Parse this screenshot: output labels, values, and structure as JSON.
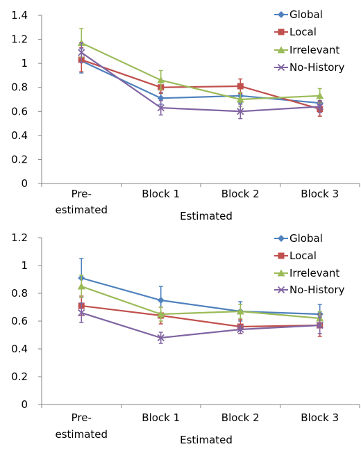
{
  "chart_data": [
    {
      "type": "line",
      "categories": [
        "Pre-estimated",
        "Block 1",
        "Block 2",
        "Block 3"
      ],
      "category_lines": [
        [
          "Pre-",
          "estimated"
        ],
        [
          "Block 1"
        ],
        [
          "Block 2"
        ],
        [
          "Block 3"
        ]
      ],
      "xlabel": "Estimated",
      "ylabel": "",
      "ylim": [
        0,
        1.4
      ],
      "yticks": [
        0,
        0.2,
        0.4,
        0.6,
        0.8,
        1,
        1.2,
        1.4
      ],
      "ytick_labels": [
        "0",
        "0.2",
        "0.4",
        "0.6",
        "0.8",
        "1",
        "1.2",
        "1.4"
      ],
      "grid": false,
      "legend_position": "top-right",
      "series": [
        {
          "name": "Global",
          "color": "#4f81bd",
          "marker": "diamond",
          "values": [
            1.02,
            0.71,
            0.73,
            0.67
          ],
          "errors": [
            0.1,
            0.05,
            0.06,
            0.04
          ]
        },
        {
          "name": "Local",
          "color": "#c0504d",
          "marker": "square",
          "values": [
            1.03,
            0.8,
            0.81,
            0.62
          ],
          "errors": [
            0.1,
            0.05,
            0.06,
            0.06
          ]
        },
        {
          "name": "Irrelevant",
          "color": "#9bbb59",
          "marker": "triangle",
          "values": [
            1.17,
            0.86,
            0.7,
            0.73
          ],
          "errors": [
            0.12,
            0.08,
            0.06,
            0.06
          ]
        },
        {
          "name": "No-History",
          "color": "#8064a2",
          "marker": "x",
          "values": [
            1.09,
            0.63,
            0.6,
            0.64
          ],
          "errors": [
            0.08,
            0.06,
            0.06,
            0.05
          ]
        }
      ]
    },
    {
      "type": "line",
      "categories": [
        "Pre-estimated",
        "Block 1",
        "Block 2",
        "Block 3"
      ],
      "category_lines": [
        [
          "Pre-",
          "estimated"
        ],
        [
          "Block 1"
        ],
        [
          "Block 2"
        ],
        [
          "Block 3"
        ]
      ],
      "xlabel": "Estimated",
      "ylabel": "",
      "ylim": [
        0,
        1.2
      ],
      "yticks": [
        0,
        0.2,
        0.4,
        0.6,
        0.8,
        1,
        1.2
      ],
      "ytick_labels": [
        "0",
        "0.2",
        "0.4",
        "0.6",
        "0.8",
        "1",
        "1.2"
      ],
      "grid": false,
      "legend_position": "top-right",
      "series": [
        {
          "name": "Global",
          "color": "#4f81bd",
          "marker": "diamond",
          "values": [
            0.91,
            0.75,
            0.67,
            0.65
          ],
          "errors": [
            0.14,
            0.1,
            0.07,
            0.07
          ]
        },
        {
          "name": "Local",
          "color": "#c0504d",
          "marker": "square",
          "values": [
            0.71,
            0.64,
            0.56,
            0.57
          ],
          "errors": [
            0.07,
            0.06,
            0.05,
            0.08
          ]
        },
        {
          "name": "Irrelevant",
          "color": "#9bbb59",
          "marker": "triangle",
          "values": [
            0.85,
            0.65,
            0.67,
            0.62
          ],
          "errors": [
            0.08,
            0.05,
            0.05,
            0.05
          ]
        },
        {
          "name": "No-History",
          "color": "#8064a2",
          "marker": "x",
          "values": [
            0.66,
            0.48,
            0.54,
            0.57
          ],
          "errors": [
            0.07,
            0.04,
            0.03,
            0.06
          ]
        }
      ]
    }
  ]
}
